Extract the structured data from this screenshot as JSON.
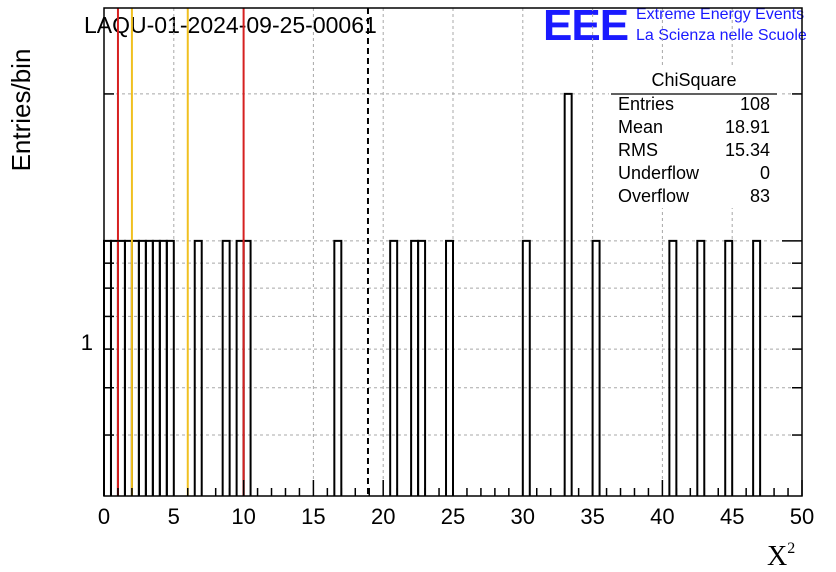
{
  "chart_data": {
    "type": "bar",
    "title": "LAQU-01-2024-09-25-00061",
    "xlabel": "X",
    "xlabel_superscript": "2",
    "ylabel": "Entries/bin",
    "xlim": [
      0,
      50
    ],
    "ylim": [
      0.3,
      3.0
    ],
    "yscale": "log",
    "xticks": [
      0,
      5,
      10,
      15,
      20,
      25,
      30,
      35,
      40,
      45,
      50
    ],
    "xtick_labels": [
      "0",
      "5",
      "10",
      "15",
      "20",
      "25",
      "30",
      "35",
      "40",
      "45",
      "50"
    ],
    "ytick_label": "1",
    "bin_width": 0.5,
    "bins": [
      {
        "x": 0.0,
        "v": 1
      },
      {
        "x": 0.5,
        "v": 1
      },
      {
        "x": 1.0,
        "v": 1
      },
      {
        "x": 1.5,
        "v": 1
      },
      {
        "x": 2.0,
        "v": 1
      },
      {
        "x": 2.5,
        "v": 1
      },
      {
        "x": 3.0,
        "v": 1
      },
      {
        "x": 3.5,
        "v": 1
      },
      {
        "x": 4.0,
        "v": 1
      },
      {
        "x": 4.5,
        "v": 1
      },
      {
        "x": 6.5,
        "v": 1
      },
      {
        "x": 8.5,
        "v": 1
      },
      {
        "x": 9.5,
        "v": 1
      },
      {
        "x": 10.0,
        "v": 1
      },
      {
        "x": 16.5,
        "v": 1
      },
      {
        "x": 20.5,
        "v": 1
      },
      {
        "x": 22.0,
        "v": 1
      },
      {
        "x": 22.5,
        "v": 1
      },
      {
        "x": 24.5,
        "v": 1
      },
      {
        "x": 30.0,
        "v": 1
      },
      {
        "x": 33.0,
        "v": 2
      },
      {
        "x": 35.0,
        "v": 1
      },
      {
        "x": 40.5,
        "v": 1
      },
      {
        "x": 42.5,
        "v": 1
      },
      {
        "x": 44.5,
        "v": 1
      },
      {
        "x": 46.5,
        "v": 1
      }
    ],
    "vertical_lines": [
      {
        "x": 1.0,
        "color": "#d62020",
        "style": "solid"
      },
      {
        "x": 2.0,
        "color": "#f0c020",
        "style": "solid"
      },
      {
        "x": 6.0,
        "color": "#f0c020",
        "style": "solid"
      },
      {
        "x": 10.0,
        "color": "#d62020",
        "style": "solid"
      },
      {
        "x": 18.91,
        "color": "#000000",
        "style": "dashed"
      }
    ],
    "grid": true,
    "stats_box": {
      "title": "ChiSquare",
      "rows": [
        {
          "label": "Entries",
          "value": "108"
        },
        {
          "label": "Mean",
          "value": "18.91"
        },
        {
          "label": "RMS",
          "value": "15.34"
        },
        {
          "label": "Underflow",
          "value": "0"
        },
        {
          "label": "Overflow",
          "value": "83"
        }
      ]
    }
  },
  "logo": {
    "mark": "EEE",
    "line1": "Extreme Energy Events",
    "line2": "La Scienza nelle Scuole",
    "color": "#1a1aff"
  }
}
